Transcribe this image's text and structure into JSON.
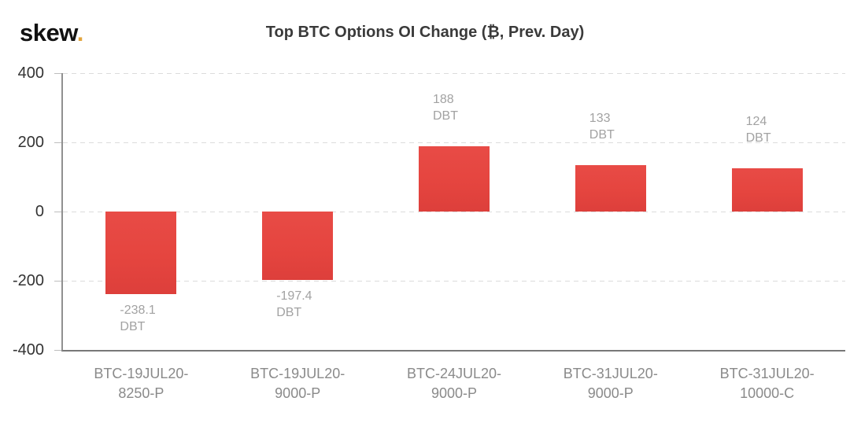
{
  "logo": {
    "text": "skew",
    "dot": "."
  },
  "chart_data": {
    "type": "bar",
    "title": "Top BTC Options OI Change (₿, Prev. Day)",
    "categories": [
      "BTC-19JUL20-8250-P",
      "BTC-19JUL20-9000-P",
      "BTC-24JUL20-9000-P",
      "BTC-31JUL20-9000-P",
      "BTC-31JUL20-10000-C"
    ],
    "tick_lines": [
      [
        "BTC-19JUL20-",
        "8250-P"
      ],
      [
        "BTC-19JUL20-",
        "9000-P"
      ],
      [
        "BTC-24JUL20-",
        "9000-P"
      ],
      [
        "BTC-31JUL20-",
        "9000-P"
      ],
      [
        "BTC-31JUL20-",
        "10000-C"
      ]
    ],
    "values": [
      -238.1,
      -197.4,
      188,
      133,
      124
    ],
    "value_labels": [
      "-238.1",
      "-197.4",
      "188",
      "133",
      "124"
    ],
    "unit": "DBT",
    "xlabel": "",
    "ylabel": "",
    "ylim": [
      -400,
      400
    ],
    "yticks": [
      400,
      200,
      0,
      -200,
      -400
    ],
    "grid": "horizontal-dashed",
    "legend": "none",
    "colors": {
      "bar": "#e5453f",
      "logo_dot": "#e2a43d",
      "value_label": "#a2a2a2",
      "x_tick_label": "#8a8a8a",
      "y_tick_label": "#333333",
      "gridline": "#dcdcdc",
      "axis": "#909090",
      "title": "#3a3a3a"
    }
  }
}
